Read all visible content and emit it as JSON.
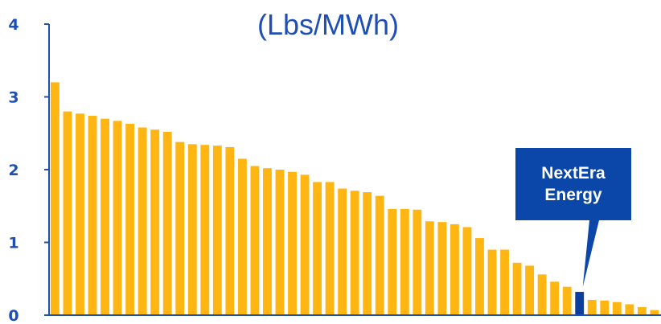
{
  "chart_data": {
    "type": "bar",
    "title": "(Lbs/MWh)",
    "xlabel": "",
    "ylabel": "",
    "ylim": [
      0,
      4
    ],
    "yticks": [
      "0",
      "1",
      "2",
      "3",
      "4"
    ],
    "grid": false,
    "legend": "none",
    "values": [
      3.2,
      2.8,
      2.77,
      2.74,
      2.7,
      2.67,
      2.63,
      2.58,
      2.55,
      2.52,
      2.38,
      2.35,
      2.34,
      2.33,
      2.31,
      2.15,
      2.05,
      2.02,
      2.0,
      1.97,
      1.93,
      1.83,
      1.83,
      1.74,
      1.71,
      1.69,
      1.64,
      1.46,
      1.46,
      1.45,
      1.29,
      1.28,
      1.25,
      1.21,
      1.06,
      0.9,
      0.9,
      0.72,
      0.68,
      0.56,
      0.46,
      0.39,
      0.32,
      0.21,
      0.2,
      0.18,
      0.15,
      0.11,
      0.07
    ],
    "highlight_index": 42,
    "callout": {
      "lines": [
        "NextEra",
        "Energy"
      ]
    },
    "colors": {
      "bar": "#ffb612",
      "highlight": "#0a3f9e",
      "callout": "#0a47a8",
      "axis": "#1f4fb3",
      "text": "#1f4fb3"
    }
  }
}
